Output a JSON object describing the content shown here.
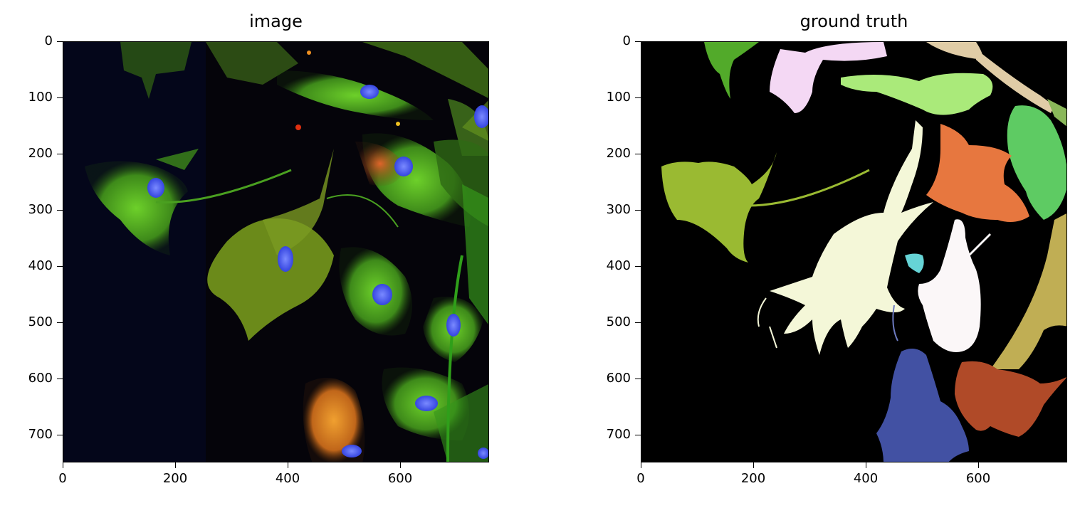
{
  "figure": {
    "panels": [
      {
        "title": "image",
        "x_ticks": [
          "0",
          "200",
          "400",
          "600"
        ],
        "y_ticks": [
          "0",
          "100",
          "200",
          "300",
          "400",
          "500",
          "600",
          "700"
        ]
      },
      {
        "title": "ground truth",
        "x_ticks": [
          "0",
          "200",
          "400",
          "600"
        ],
        "y_ticks": [
          "0",
          "100",
          "200",
          "300",
          "400",
          "500",
          "600",
          "700"
        ]
      }
    ],
    "colors": {
      "background_dark": "#04061a",
      "actin_green": "#3ad32c",
      "membrane_red": "#d23a12",
      "nucleus_blue": "#3f54f0",
      "mask_background": "#000000",
      "mask_olive": "#9aba32",
      "mask_cream": "#f4f7d8",
      "mask_orange": "#e7773f",
      "mask_green": "#5ecb63",
      "mask_lightgreen": "#aaea7a",
      "mask_pink": "#f4d8f4",
      "mask_tan": "#e0cca6",
      "mask_khaki": "#c0ae54",
      "mask_rust": "#b04a28",
      "mask_navy": "#4251a3",
      "mask_white": "#fbf7f8",
      "mask_cyan": "#66d4d6",
      "mask_darkgreen": "#52aa2a"
    }
  }
}
